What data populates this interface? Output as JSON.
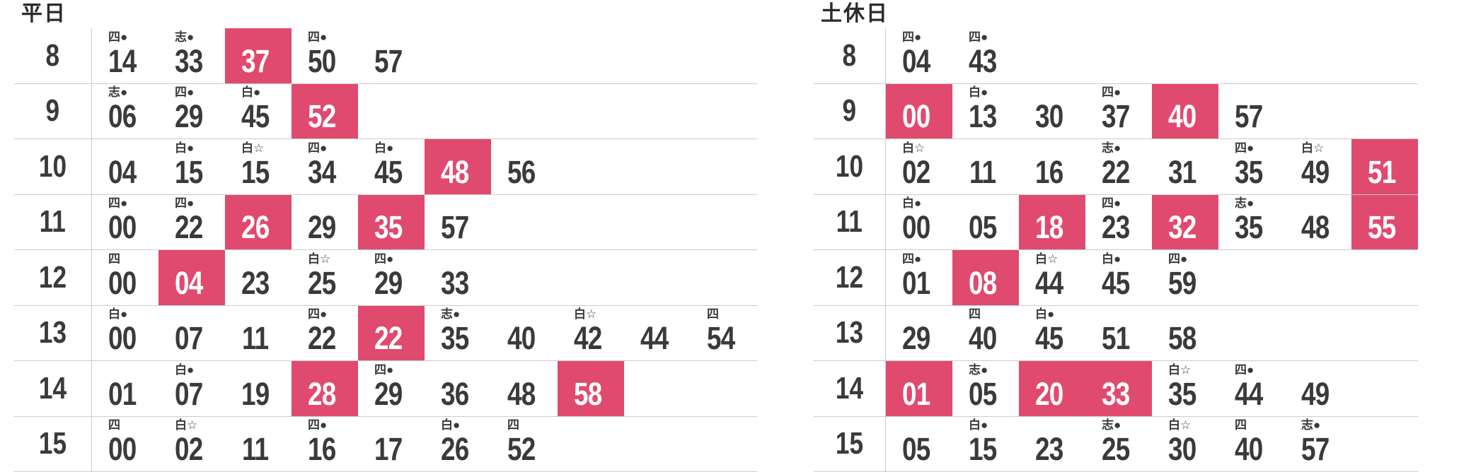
{
  "colors": {
    "highlight": "#e04a6e",
    "text": "#3a3a3a",
    "grid_line": "#cccccc",
    "background": "#ffffff"
  },
  "legend_symbols": [
    "四●",
    "志●",
    "白●",
    "白☆",
    "四"
  ],
  "tables": [
    {
      "title": "平日",
      "rows": [
        {
          "hour": "8",
          "cells": [
            {
              "note": "四●",
              "min": "14"
            },
            {
              "note": "志●",
              "min": "33"
            },
            {
              "note": "",
              "min": "37",
              "hl": true
            },
            {
              "note": "四●",
              "min": "50"
            },
            {
              "note": "",
              "min": "57"
            }
          ]
        },
        {
          "hour": "9",
          "cells": [
            {
              "note": "志●",
              "min": "06"
            },
            {
              "note": "四●",
              "min": "29"
            },
            {
              "note": "白●",
              "min": "45"
            },
            {
              "note": "",
              "min": "52",
              "hl": true
            }
          ]
        },
        {
          "hour": "10",
          "cells": [
            {
              "note": "",
              "min": "04"
            },
            {
              "note": "白●",
              "min": "15"
            },
            {
              "note": "白☆",
              "min": "15"
            },
            {
              "note": "四●",
              "min": "34"
            },
            {
              "note": "白●",
              "min": "45"
            },
            {
              "note": "",
              "min": "48",
              "hl": true
            },
            {
              "note": "",
              "min": "56"
            }
          ]
        },
        {
          "hour": "11",
          "cells": [
            {
              "note": "四●",
              "min": "00"
            },
            {
              "note": "四●",
              "min": "22"
            },
            {
              "note": "",
              "min": "26",
              "hl": true
            },
            {
              "note": "",
              "min": "29"
            },
            {
              "note": "",
              "min": "35",
              "hl": true
            },
            {
              "note": "",
              "min": "57"
            }
          ]
        },
        {
          "hour": "12",
          "cells": [
            {
              "note": "四",
              "min": "00"
            },
            {
              "note": "",
              "min": "04",
              "hl": true
            },
            {
              "note": "",
              "min": "23"
            },
            {
              "note": "白☆",
              "min": "25"
            },
            {
              "note": "四●",
              "min": "29"
            },
            {
              "note": "",
              "min": "33"
            }
          ]
        },
        {
          "hour": "13",
          "cells": [
            {
              "note": "白●",
              "min": "00"
            },
            {
              "note": "",
              "min": "07"
            },
            {
              "note": "",
              "min": "11"
            },
            {
              "note": "四●",
              "min": "22"
            },
            {
              "note": "",
              "min": "22",
              "hl": true
            },
            {
              "note": "志●",
              "min": "35"
            },
            {
              "note": "",
              "min": "40"
            },
            {
              "note": "白☆",
              "min": "42"
            },
            {
              "note": "",
              "min": "44"
            },
            {
              "note": "四",
              "min": "54"
            }
          ]
        },
        {
          "hour": "14",
          "cells": [
            {
              "note": "",
              "min": "01"
            },
            {
              "note": "白●",
              "min": "07"
            },
            {
              "note": "",
              "min": "19"
            },
            {
              "note": "",
              "min": "28",
              "hl": true
            },
            {
              "note": "四●",
              "min": "29"
            },
            {
              "note": "",
              "min": "36"
            },
            {
              "note": "",
              "min": "48"
            },
            {
              "note": "",
              "min": "58",
              "hl": true
            }
          ]
        },
        {
          "hour": "15",
          "cells": [
            {
              "note": "四",
              "min": "00"
            },
            {
              "note": "白☆",
              "min": "02"
            },
            {
              "note": "",
              "min": "11"
            },
            {
              "note": "四●",
              "min": "16"
            },
            {
              "note": "",
              "min": "17"
            },
            {
              "note": "白●",
              "min": "26"
            },
            {
              "note": "四",
              "min": "52"
            }
          ]
        }
      ]
    },
    {
      "title": "土休日",
      "rows": [
        {
          "hour": "8",
          "cells": [
            {
              "note": "四●",
              "min": "04"
            },
            {
              "note": "四●",
              "min": "43"
            }
          ]
        },
        {
          "hour": "9",
          "cells": [
            {
              "note": "",
              "min": "00",
              "hl": true
            },
            {
              "note": "白●",
              "min": "13"
            },
            {
              "note": "",
              "min": "30"
            },
            {
              "note": "四●",
              "min": "37"
            },
            {
              "note": "",
              "min": "40",
              "hl": true
            },
            {
              "note": "",
              "min": "57"
            }
          ]
        },
        {
          "hour": "10",
          "cells": [
            {
              "note": "白☆",
              "min": "02"
            },
            {
              "note": "",
              "min": "11"
            },
            {
              "note": "",
              "min": "16"
            },
            {
              "note": "志●",
              "min": "22"
            },
            {
              "note": "",
              "min": "31"
            },
            {
              "note": "四●",
              "min": "35"
            },
            {
              "note": "白☆",
              "min": "49"
            },
            {
              "note": "",
              "min": "51",
              "hl": true
            }
          ]
        },
        {
          "hour": "11",
          "cells": [
            {
              "note": "白●",
              "min": "00"
            },
            {
              "note": "",
              "min": "05"
            },
            {
              "note": "",
              "min": "18",
              "hl": true
            },
            {
              "note": "四●",
              "min": "23"
            },
            {
              "note": "",
              "min": "32",
              "hl": true
            },
            {
              "note": "志●",
              "min": "35"
            },
            {
              "note": "",
              "min": "48"
            },
            {
              "note": "",
              "min": "55",
              "hl": true
            }
          ]
        },
        {
          "hour": "12",
          "cells": [
            {
              "note": "四●",
              "min": "01"
            },
            {
              "note": "",
              "min": "08",
              "hl": true
            },
            {
              "note": "白☆",
              "min": "44"
            },
            {
              "note": "白●",
              "min": "45"
            },
            {
              "note": "四●",
              "min": "59"
            }
          ]
        },
        {
          "hour": "13",
          "cells": [
            {
              "note": "",
              "min": "29"
            },
            {
              "note": "四",
              "min": "40"
            },
            {
              "note": "白●",
              "min": "45"
            },
            {
              "note": "",
              "min": "51"
            },
            {
              "note": "",
              "min": "58"
            }
          ]
        },
        {
          "hour": "14",
          "cells": [
            {
              "note": "",
              "min": "01",
              "hl": true
            },
            {
              "note": "志●",
              "min": "05"
            },
            {
              "note": "",
              "min": "20",
              "hl": true
            },
            {
              "note": "",
              "min": "33",
              "hl": true
            },
            {
              "note": "白☆",
              "min": "35"
            },
            {
              "note": "四●",
              "min": "44"
            },
            {
              "note": "",
              "min": "49"
            }
          ]
        },
        {
          "hour": "15",
          "cells": [
            {
              "note": "",
              "min": "05"
            },
            {
              "note": "白●",
              "min": "15"
            },
            {
              "note": "",
              "min": "23"
            },
            {
              "note": "志●",
              "min": "25"
            },
            {
              "note": "白☆",
              "min": "30"
            },
            {
              "note": "四",
              "min": "40"
            },
            {
              "note": "志●",
              "min": "57"
            }
          ]
        }
      ]
    }
  ]
}
